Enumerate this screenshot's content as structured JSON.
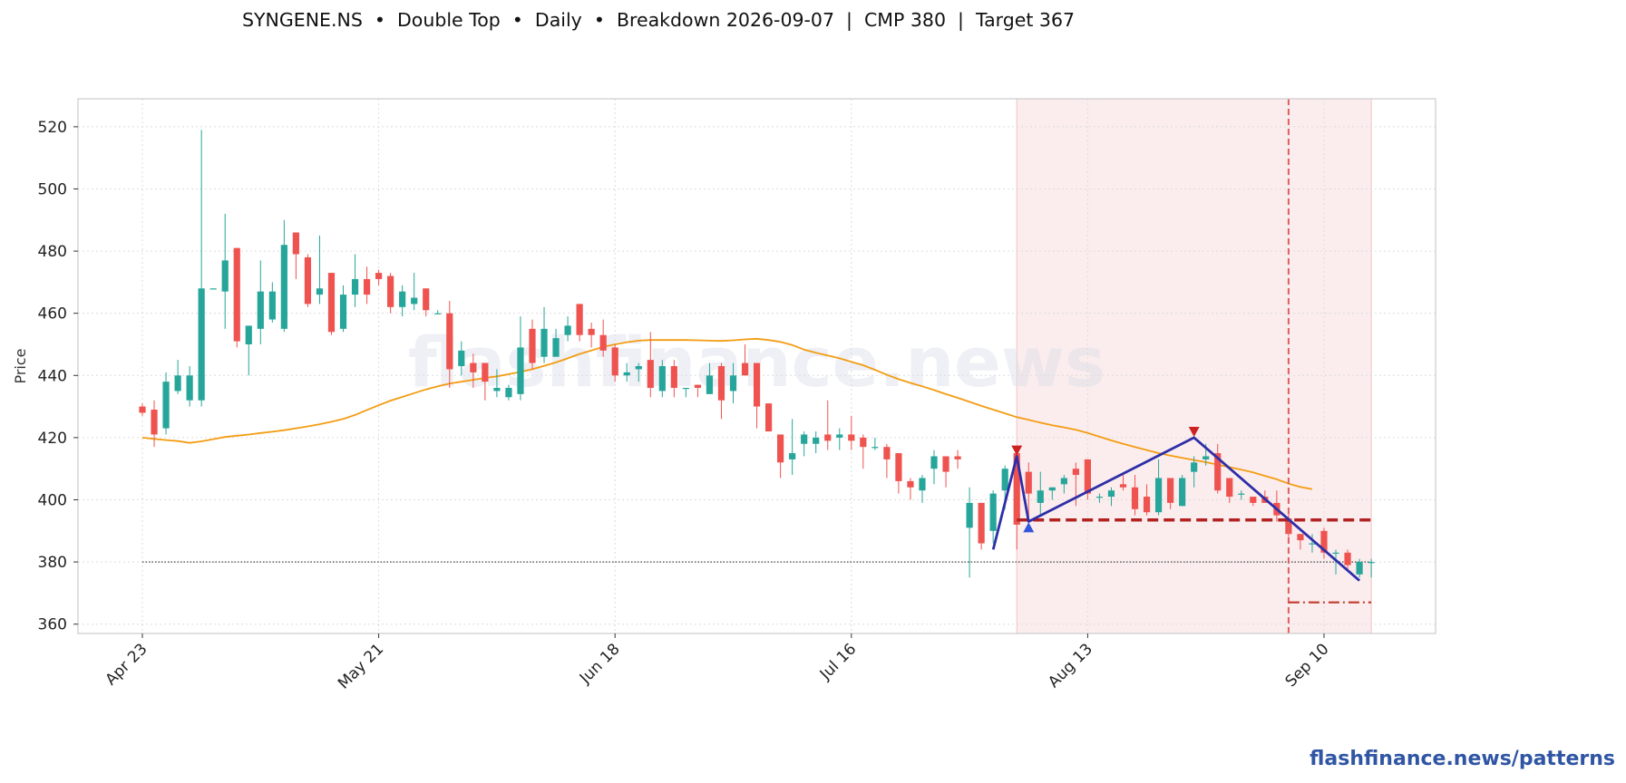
{
  "chart_data": {
    "type": "candlestick",
    "title": "SYNGENE.NS  •  Double Top  •  Daily  •  Breakdown 2026-09-07  |  CMP 380  |  Target 367",
    "ylabel": "Price",
    "watermark": "flashfinance.news",
    "ylim": [
      357,
      529
    ],
    "yticks": [
      360,
      380,
      400,
      420,
      440,
      460,
      480,
      500,
      520
    ],
    "xticks": [
      {
        "label": "Apr 23",
        "index": 0
      },
      {
        "label": "May 21",
        "index": 20
      },
      {
        "label": "Jun 18",
        "index": 40
      },
      {
        "label": "Jul 16",
        "index": 60
      },
      {
        "label": "Aug 13",
        "index": 80
      },
      {
        "label": "Sep 10",
        "index": 100
      }
    ],
    "grid": true,
    "colors": {
      "up": "#26a69a",
      "down": "#ef5350",
      "ma": "#f39c12",
      "pattern": "#2e2ea8",
      "level": "#b22222",
      "target": "#c0392b",
      "shade": "#f7dede",
      "breakdown_line": "#e06060",
      "peak_marker": "#cc2222",
      "trough_marker": "#3355dd",
      "cmp_line": "#444444"
    },
    "candles": [
      [
        430,
        431,
        427,
        428
      ],
      [
        429,
        432,
        417,
        421
      ],
      [
        423,
        441,
        421,
        438
      ],
      [
        435,
        445,
        434,
        440
      ],
      [
        432,
        443,
        430,
        440
      ],
      [
        432,
        519,
        430,
        468
      ],
      [
        468,
        468,
        468,
        468
      ],
      [
        467,
        492,
        455,
        477
      ],
      [
        481,
        481,
        449,
        451
      ],
      [
        450,
        456,
        440,
        456
      ],
      [
        455,
        477,
        450,
        467
      ],
      [
        458,
        470,
        457,
        467
      ],
      [
        455,
        490,
        454,
        482
      ],
      [
        486,
        486,
        471,
        479
      ],
      [
        478,
        479,
        462,
        463
      ],
      [
        466,
        485,
        463,
        468
      ],
      [
        473,
        473,
        453,
        454
      ],
      [
        455,
        469,
        454,
        466
      ],
      [
        466,
        479,
        462,
        471
      ],
      [
        471,
        475,
        463,
        466
      ],
      [
        473,
        474,
        469,
        471
      ],
      [
        472,
        473,
        460,
        462
      ],
      [
        462,
        469,
        459,
        467
      ],
      [
        463,
        473,
        461,
        465
      ],
      [
        468,
        468,
        459,
        461
      ],
      [
        460,
        461,
        460,
        460
      ],
      [
        460,
        464,
        436,
        442
      ],
      [
        443,
        451,
        440,
        448
      ],
      [
        444,
        447,
        436,
        441
      ],
      [
        444,
        444,
        432,
        438
      ],
      [
        435,
        442,
        433,
        436
      ],
      [
        433,
        437,
        432,
        436
      ],
      [
        434,
        459,
        432,
        449
      ],
      [
        455,
        458,
        442,
        444
      ],
      [
        446,
        462,
        444,
        455
      ],
      [
        446,
        455,
        447,
        452
      ],
      [
        453,
        459,
        451,
        456
      ],
      [
        463,
        463,
        451,
        453
      ],
      [
        455,
        457,
        449,
        453
      ],
      [
        453,
        458,
        446,
        448
      ],
      [
        449,
        450,
        438,
        440
      ],
      [
        440,
        444,
        438,
        441
      ],
      [
        442,
        444,
        438,
        443
      ],
      [
        445,
        454,
        433,
        436
      ],
      [
        435,
        445,
        433,
        443
      ],
      [
        443,
        445,
        433,
        436
      ],
      [
        436,
        436,
        433,
        436
      ],
      [
        437,
        437,
        433,
        436
      ],
      [
        434,
        444,
        435,
        440
      ],
      [
        443,
        444,
        426,
        432
      ],
      [
        435,
        444,
        431,
        440
      ],
      [
        444,
        450,
        440,
        440
      ],
      [
        444,
        444,
        423,
        430
      ],
      [
        431,
        431,
        422,
        422
      ],
      [
        421,
        421,
        407,
        412
      ],
      [
        413,
        426,
        408,
        415
      ],
      [
        418,
        422,
        414,
        421
      ],
      [
        418,
        422,
        415,
        420
      ],
      [
        421,
        432,
        416,
        419
      ],
      [
        420,
        423,
        416,
        421
      ],
      [
        421,
        427,
        416,
        419
      ],
      [
        420,
        421,
        410,
        417
      ],
      [
        417,
        420,
        416,
        417
      ],
      [
        417,
        418,
        407,
        413
      ],
      [
        415,
        415,
        402,
        406
      ],
      [
        406,
        407,
        400,
        404
      ],
      [
        403,
        408,
        399,
        407
      ],
      [
        410,
        416,
        405,
        414
      ],
      [
        414,
        414,
        404,
        409
      ],
      [
        414,
        416,
        410,
        413
      ],
      [
        391,
        404,
        375,
        399
      ],
      [
        399,
        399,
        384,
        386
      ],
      [
        390,
        403,
        386,
        402
      ],
      [
        403,
        411,
        397,
        410
      ],
      [
        415,
        415,
        384,
        392
      ],
      [
        409,
        412,
        394,
        402
      ],
      [
        399,
        409,
        395,
        403
      ],
      [
        403,
        404,
        400,
        404
      ],
      [
        405,
        408,
        402,
        407
      ],
      [
        410,
        412,
        398,
        408
      ],
      [
        413,
        413,
        400,
        402
      ],
      [
        401,
        402,
        399,
        401
      ],
      [
        401,
        404,
        398,
        403
      ],
      [
        405,
        408,
        403,
        404
      ],
      [
        404,
        408,
        395,
        397
      ],
      [
        401,
        405,
        395,
        396
      ],
      [
        396,
        413,
        395,
        407
      ],
      [
        407,
        407,
        397,
        399
      ],
      [
        398,
        408,
        398,
        407
      ],
      [
        409,
        414,
        404,
        412
      ],
      [
        413,
        418,
        411,
        414
      ],
      [
        415,
        418,
        402,
        403
      ],
      [
        407,
        407,
        399,
        401
      ],
      [
        402,
        403,
        400,
        402
      ],
      [
        401,
        401,
        398,
        399
      ],
      [
        401,
        403,
        399,
        399
      ],
      [
        399,
        403,
        393,
        395
      ],
      [
        394,
        397,
        388,
        389
      ],
      [
        389,
        389,
        384,
        387
      ],
      [
        386,
        389,
        383,
        386
      ],
      [
        390,
        391,
        381,
        383
      ],
      [
        383,
        384,
        376,
        383
      ],
      [
        383,
        384,
        377,
        379
      ],
      [
        376,
        381,
        375,
        380
      ],
      [
        380,
        381,
        375,
        380
      ]
    ],
    "ma_series": [
      420,
      419.6,
      419.2,
      418.9,
      418.3,
      418.8,
      419.5,
      420.2,
      420.6,
      421.0,
      421.5,
      421.9,
      422.4,
      423.0,
      423.6,
      424.3,
      425.1,
      426.0,
      427.3,
      428.9,
      430.4,
      431.9,
      433.1,
      434.3,
      435.5,
      436.5,
      437.4,
      438.0,
      438.6,
      439.2,
      439.7,
      440.4,
      441.2,
      442.0,
      443.1,
      444.2,
      445.5,
      446.9,
      448.0,
      449.2,
      450.0,
      450.7,
      451.2,
      451.4,
      451.4,
      451.4,
      451.4,
      451.3,
      451.2,
      451.1,
      451.3,
      451.6,
      451.8,
      451.4,
      450.8,
      449.8,
      448.3,
      447.3,
      446.4,
      445.5,
      444.4,
      443.3,
      441.8,
      440.2,
      438.8,
      437.6,
      436.5,
      435.3,
      434.0,
      432.8,
      431.5,
      430.2,
      429.0,
      427.8,
      426.6,
      425.7,
      424.8,
      424.0,
      423.3,
      422.5,
      421.5,
      420.3,
      419.1,
      418.0,
      417.0,
      416.0,
      415.0,
      414.2,
      413.5,
      412.8,
      412.1,
      411.3,
      410.5,
      409.7,
      408.8,
      407.7,
      406.6,
      405.2,
      404.1,
      403.4
    ],
    "ma_start_index": 0,
    "pattern_line": [
      [
        72,
        384
      ],
      [
        74,
        414
      ],
      [
        75,
        393
      ],
      [
        89,
        420
      ],
      [
        103,
        374
      ]
    ],
    "peaks": [
      [
        74,
        416
      ],
      [
        89,
        422
      ]
    ],
    "troughs": [
      [
        75,
        391
      ]
    ],
    "neckline": {
      "value": 393.5,
      "from": 74,
      "to": 104
    },
    "target_line": {
      "value": 367,
      "from": 97,
      "to": 104
    },
    "cmp_line": {
      "value": 380,
      "from": 0,
      "to": 104
    },
    "breakdown_index": 97,
    "shade_range": [
      74,
      104
    ]
  },
  "footer": {
    "link": "flashfinance.news/patterns"
  }
}
